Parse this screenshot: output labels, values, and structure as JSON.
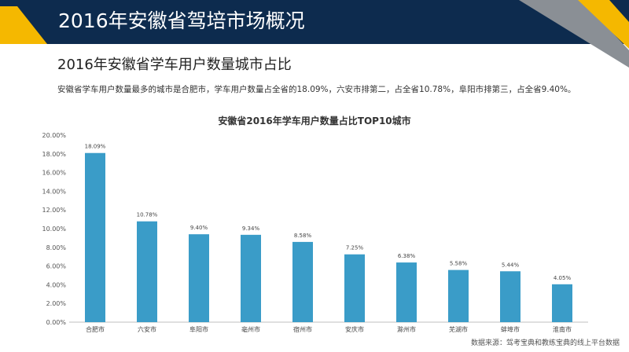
{
  "header": {
    "title": "2016年安徽省驾培市场概况"
  },
  "section": {
    "subtitle": "2016年安徽省学车用户数量城市占比",
    "summary": "安徽省学车用户数量最多的城市是合肥市，学车用户数量占全省的18.09%，六安市排第二，占全省10.78%，阜阳市排第三，占全省9.40%。"
  },
  "colors": {
    "banner": "#0d2b4e",
    "accent_yellow": "#f5b800",
    "accent_gray": "#8a8f95",
    "bar": "#3a9cc8"
  },
  "chart_data": {
    "type": "bar",
    "title": "安徽省2016年学车用户数量占比TOP10城市",
    "xlabel": "",
    "ylabel": "",
    "categories": [
      "合肥市",
      "六安市",
      "阜阳市",
      "亳州市",
      "宿州市",
      "安庆市",
      "滁州市",
      "芜湖市",
      "蚌埠市",
      "淮南市"
    ],
    "values": [
      18.09,
      10.78,
      9.4,
      9.34,
      8.58,
      7.25,
      6.38,
      5.58,
      5.44,
      4.05
    ],
    "value_labels": [
      "18.09%",
      "10.78%",
      "9.40%",
      "9.34%",
      "8.58%",
      "7.25%",
      "6.38%",
      "5.58%",
      "5.44%",
      "4.05%"
    ],
    "ylim": [
      0,
      20
    ],
    "yticks": [
      0,
      2,
      4,
      6,
      8,
      10,
      12,
      14,
      16,
      18,
      20
    ],
    "ytick_labels": [
      "0.00%",
      "2.00%",
      "4.00%",
      "6.00%",
      "8.00%",
      "10.00%",
      "12.00%",
      "14.00%",
      "16.00%",
      "18.00%",
      "20.00%"
    ],
    "grid": false,
    "legend": "none"
  },
  "footer": {
    "source": "数据来源：驾考宝典和教练宝典的线上平台数据"
  }
}
